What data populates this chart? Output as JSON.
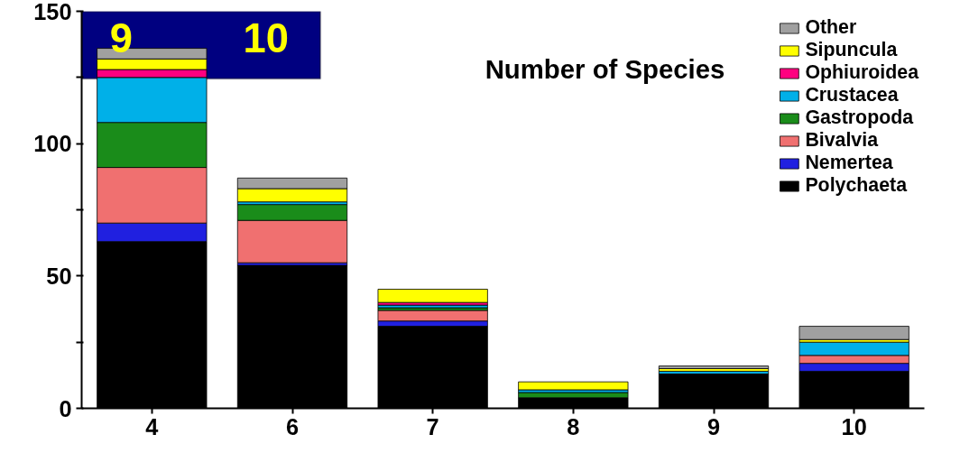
{
  "chart_data": {
    "type": "bar",
    "title": "Number of Species",
    "stacked": true,
    "categories": [
      "4",
      "6",
      "7",
      "8",
      "9",
      "10"
    ],
    "series": [
      {
        "name": "Polychaeta",
        "color": "#000000",
        "values": [
          63,
          54,
          31,
          4,
          13,
          14
        ]
      },
      {
        "name": "Nemertea",
        "color": "#2020e0",
        "values": [
          7,
          1,
          2,
          0,
          0,
          3
        ]
      },
      {
        "name": "Bivalvia",
        "color": "#f07070",
        "values": [
          21,
          16,
          4,
          0,
          0,
          3
        ]
      },
      {
        "name": "Gastropoda",
        "color": "#1a8c1a",
        "values": [
          17,
          6,
          1,
          2,
          0,
          0
        ]
      },
      {
        "name": "Crustacea",
        "color": "#00b0e8",
        "values": [
          17,
          1,
          1,
          1,
          1,
          5
        ]
      },
      {
        "name": "Ophiuroidea",
        "color": "#ff0080",
        "values": [
          3,
          0,
          1,
          0,
          0,
          0
        ]
      },
      {
        "name": "Sipuncula",
        "color": "#ffff00",
        "values": [
          4,
          5,
          5,
          3,
          1,
          1
        ]
      },
      {
        "name": "Other",
        "color": "#a0a0a0",
        "values": [
          4,
          4,
          0,
          0,
          1,
          5
        ]
      }
    ],
    "ylim": [
      0,
      150
    ],
    "yticks": [
      0,
      {
        "value": 25,
        "label": null
      },
      50,
      {
        "value": 75,
        "label": null
      },
      100,
      {
        "value": 125,
        "label": null
      },
      150
    ],
    "legend": "top right",
    "grid": false,
    "annotations": [
      "9",
      "10"
    ]
  }
}
